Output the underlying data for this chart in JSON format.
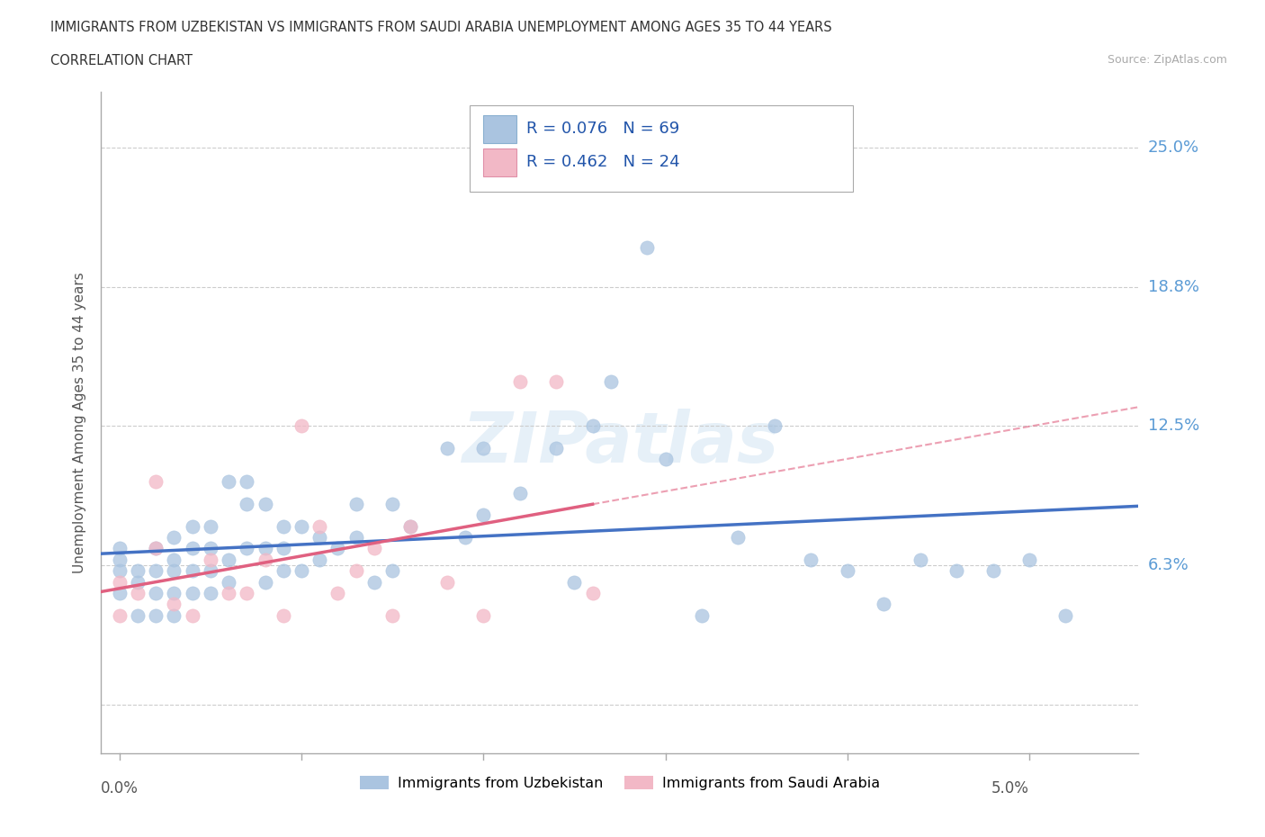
{
  "title_line1": "IMMIGRANTS FROM UZBEKISTAN VS IMMIGRANTS FROM SAUDI ARABIA UNEMPLOYMENT AMONG AGES 35 TO 44 YEARS",
  "title_line2": "CORRELATION CHART",
  "source": "Source: ZipAtlas.com",
  "ylabel": "Unemployment Among Ages 35 to 44 years",
  "watermark": "ZIPatlas",
  "legend1_color": "#aac4e0",
  "legend2_color": "#f2b8c6",
  "legend1_label": "Immigrants from Uzbekistan",
  "legend2_label": "Immigrants from Saudi Arabia",
  "R1": "0.076",
  "N1": "69",
  "R2": "0.462",
  "N2": "24",
  "trend_color1": "#4472c4",
  "trend_color2": "#e06080",
  "scatter_color1": "#aac4e0",
  "scatter_color2": "#f2b8c6",
  "grid_color": "#cccccc",
  "label_color": "#5b9bd5",
  "xlim": [
    -0.001,
    0.056
  ],
  "ylim": [
    -0.022,
    0.275
  ],
  "uzbekistan_x": [
    0.0,
    0.0,
    0.0,
    0.0,
    0.001,
    0.001,
    0.001,
    0.002,
    0.002,
    0.002,
    0.002,
    0.003,
    0.003,
    0.003,
    0.003,
    0.003,
    0.004,
    0.004,
    0.004,
    0.004,
    0.005,
    0.005,
    0.005,
    0.005,
    0.006,
    0.006,
    0.006,
    0.007,
    0.007,
    0.007,
    0.008,
    0.008,
    0.008,
    0.009,
    0.009,
    0.009,
    0.01,
    0.01,
    0.011,
    0.011,
    0.012,
    0.013,
    0.013,
    0.014,
    0.015,
    0.015,
    0.016,
    0.018,
    0.019,
    0.02,
    0.02,
    0.022,
    0.024,
    0.025,
    0.026,
    0.027,
    0.029,
    0.03,
    0.032,
    0.034,
    0.036,
    0.038,
    0.04,
    0.042,
    0.044,
    0.046,
    0.048,
    0.05,
    0.052
  ],
  "uzbekistan_y": [
    0.05,
    0.06,
    0.065,
    0.07,
    0.04,
    0.055,
    0.06,
    0.04,
    0.05,
    0.06,
    0.07,
    0.04,
    0.05,
    0.06,
    0.065,
    0.075,
    0.05,
    0.06,
    0.07,
    0.08,
    0.05,
    0.06,
    0.07,
    0.08,
    0.055,
    0.065,
    0.1,
    0.07,
    0.09,
    0.1,
    0.055,
    0.07,
    0.09,
    0.06,
    0.07,
    0.08,
    0.06,
    0.08,
    0.065,
    0.075,
    0.07,
    0.075,
    0.09,
    0.055,
    0.06,
    0.09,
    0.08,
    0.115,
    0.075,
    0.115,
    0.085,
    0.095,
    0.115,
    0.055,
    0.125,
    0.145,
    0.205,
    0.11,
    0.04,
    0.075,
    0.125,
    0.065,
    0.06,
    0.045,
    0.065,
    0.06,
    0.06,
    0.065,
    0.04
  ],
  "saudi_x": [
    0.0,
    0.0,
    0.001,
    0.002,
    0.002,
    0.003,
    0.004,
    0.005,
    0.006,
    0.007,
    0.008,
    0.009,
    0.01,
    0.011,
    0.012,
    0.013,
    0.014,
    0.015,
    0.016,
    0.018,
    0.02,
    0.022,
    0.024,
    0.026
  ],
  "saudi_y": [
    0.04,
    0.055,
    0.05,
    0.1,
    0.07,
    0.045,
    0.04,
    0.065,
    0.05,
    0.05,
    0.065,
    0.04,
    0.125,
    0.08,
    0.05,
    0.06,
    0.07,
    0.04,
    0.08,
    0.055,
    0.04,
    0.145,
    0.145,
    0.05
  ]
}
